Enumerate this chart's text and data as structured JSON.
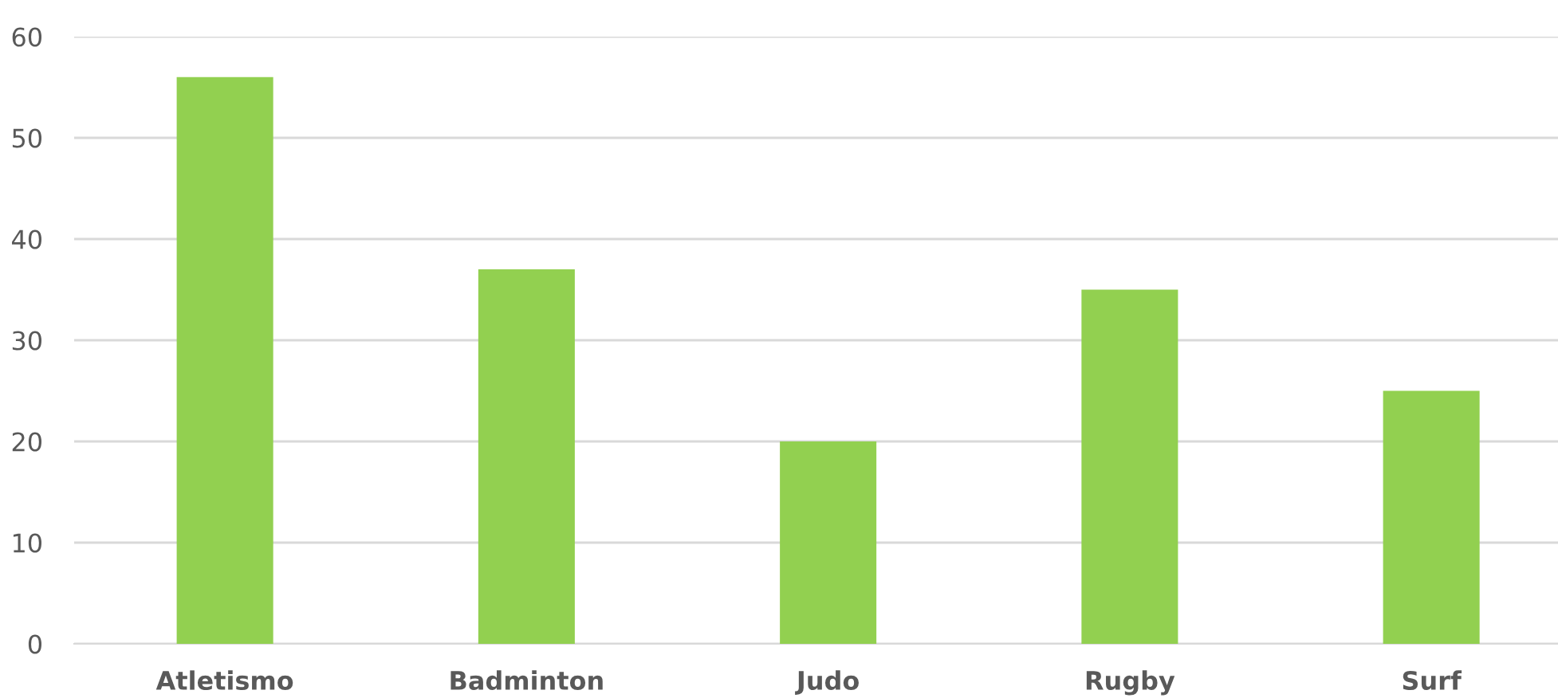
{
  "chart_data": {
    "type": "bar",
    "categories": [
      "Atletismo",
      "Badminton",
      "Judo",
      "Rugby",
      "Surf"
    ],
    "values": [
      56,
      37,
      20,
      35,
      25
    ],
    "color": "#92d050",
    "ylim": [
      0,
      60
    ],
    "yticks": [
      0,
      10,
      20,
      30,
      40,
      50,
      60
    ],
    "grid": "y"
  }
}
